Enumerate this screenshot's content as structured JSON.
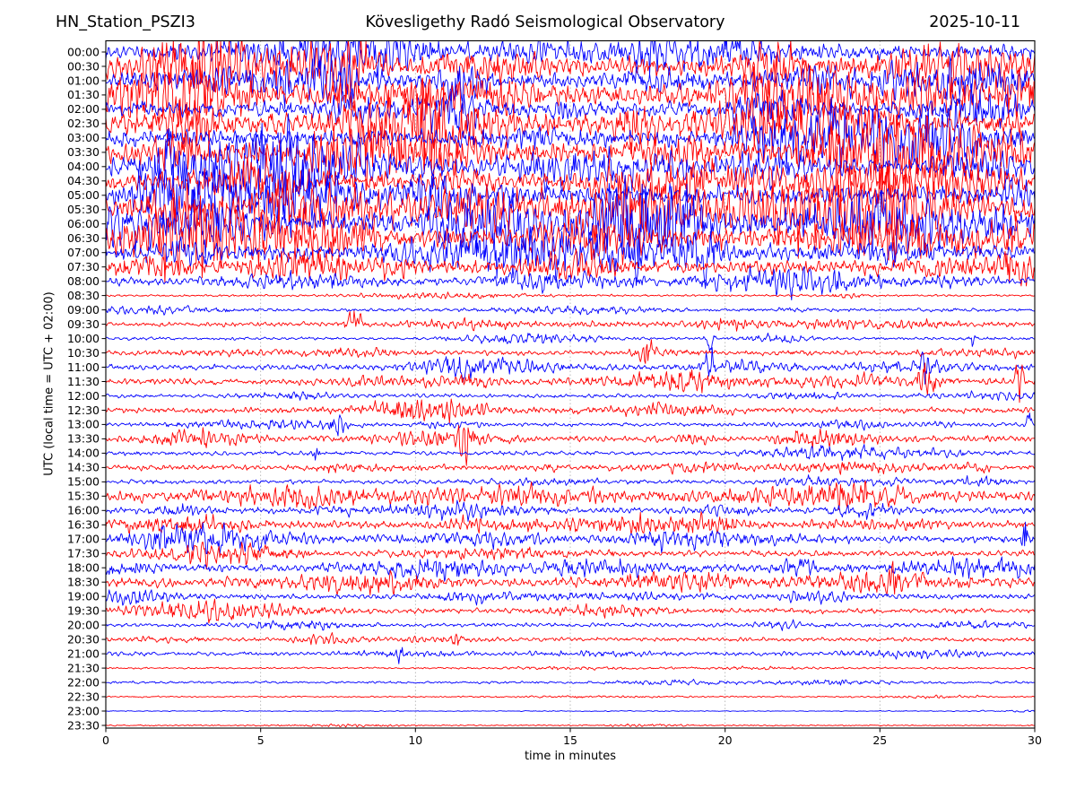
{
  "header": {
    "station": "HN_Station_PSZI3",
    "observatory": "Kövesligethy Radó Seismological Observatory",
    "date": "2025-10-11"
  },
  "chart_data": {
    "type": "line",
    "subtype": "helicorder-seismogram",
    "title": "HN_Station_PSZI3 — Kövesligethy Radó Seismological Observatory — 2025-10-11",
    "xlabel": "time in minutes",
    "ylabel": "UTC (local time = UTC + 02:00)",
    "xlim": [
      0,
      30
    ],
    "xticks": [
      0,
      5,
      10,
      15,
      20,
      25,
      30
    ],
    "grid": {
      "vertical_at": [
        5,
        10,
        15,
        20,
        25
      ],
      "style": "dotted",
      "color": "#aaaaaa"
    },
    "legend": "none",
    "colors": {
      "blue": "#0000ff",
      "red": "#ff0000",
      "axis": "#000000"
    },
    "trace_color_rule": "rows alternate blue (on the hour) and red (on the half hour)",
    "amplitude_note": "amp is typical half-amplitude as fraction of the 16px row spacing, estimated from pixels",
    "rows": [
      {
        "t": "00:00",
        "c": "blue",
        "a": 0.42,
        "nb": 7
      },
      {
        "t": "00:30",
        "c": "red",
        "a": 0.52,
        "nb": 8
      },
      {
        "t": "01:00",
        "c": "blue",
        "a": 0.42,
        "nb": 7
      },
      {
        "t": "01:30",
        "c": "red",
        "a": 0.58,
        "nb": 8
      },
      {
        "t": "02:00",
        "c": "blue",
        "a": 0.45,
        "nb": 7
      },
      {
        "t": "02:30",
        "c": "red",
        "a": 0.62,
        "nb": 8
      },
      {
        "t": "03:00",
        "c": "blue",
        "a": 0.48,
        "nb": 7
      },
      {
        "t": "03:30",
        "c": "red",
        "a": 0.62,
        "nb": 8
      },
      {
        "t": "04:00",
        "c": "blue",
        "a": 0.58,
        "nb": 8
      },
      {
        "t": "04:30",
        "c": "red",
        "a": 0.48,
        "nb": 7
      },
      {
        "t": "05:00",
        "c": "blue",
        "a": 0.52,
        "nb": 8
      },
      {
        "t": "05:30",
        "c": "red",
        "a": 0.68,
        "nb": 9
      },
      {
        "t": "06:00",
        "c": "blue",
        "a": 0.62,
        "nb": 9
      },
      {
        "t": "06:30",
        "c": "red",
        "a": 0.52,
        "nb": 8
      },
      {
        "t": "07:00",
        "c": "blue",
        "a": 0.42,
        "nb": 7
      },
      {
        "t": "07:30",
        "c": "red",
        "a": 0.38,
        "nb": 6
      },
      {
        "t": "08:00",
        "c": "blue",
        "a": 0.22,
        "nb": 5
      },
      {
        "t": "08:30",
        "c": "red",
        "a": 0.06,
        "nb": 3
      },
      {
        "t": "09:00",
        "c": "blue",
        "a": 0.09,
        "nb": 3
      },
      {
        "t": "09:30",
        "c": "red",
        "a": 0.12,
        "nb": 4,
        "ev": [
          8
        ]
      },
      {
        "t": "10:00",
        "c": "blue",
        "a": 0.08,
        "nb": 3,
        "ev": [
          19.5,
          28
        ]
      },
      {
        "t": "10:30",
        "c": "red",
        "a": 0.14,
        "nb": 4,
        "ev": [
          17.5
        ]
      },
      {
        "t": "11:00",
        "c": "blue",
        "a": 0.16,
        "nb": 4,
        "ev": [
          19.5,
          26.5
        ]
      },
      {
        "t": "11:30",
        "c": "red",
        "a": 0.18,
        "nb": 5,
        "ev": [
          26.5,
          29.5
        ]
      },
      {
        "t": "12:00",
        "c": "blue",
        "a": 0.11,
        "nb": 4
      },
      {
        "t": "12:30",
        "c": "red",
        "a": 0.15,
        "nb": 5
      },
      {
        "t": "13:00",
        "c": "blue",
        "a": 0.11,
        "nb": 4,
        "ev": [
          7.5,
          29.8
        ]
      },
      {
        "t": "13:30",
        "c": "red",
        "a": 0.18,
        "nb": 5,
        "ev": [
          11.7
        ]
      },
      {
        "t": "14:00",
        "c": "blue",
        "a": 0.12,
        "nb": 4,
        "ev": [
          6.8
        ]
      },
      {
        "t": "14:30",
        "c": "red",
        "a": 0.15,
        "nb": 5
      },
      {
        "t": "15:00",
        "c": "blue",
        "a": 0.12,
        "nb": 4
      },
      {
        "t": "15:30",
        "c": "red",
        "a": 0.28,
        "nb": 6
      },
      {
        "t": "16:00",
        "c": "blue",
        "a": 0.18,
        "nb": 5
      },
      {
        "t": "16:30",
        "c": "red",
        "a": 0.2,
        "nb": 6
      },
      {
        "t": "17:00",
        "c": "blue",
        "a": 0.2,
        "nb": 6,
        "ev": [
          29.7
        ]
      },
      {
        "t": "17:30",
        "c": "red",
        "a": 0.16,
        "nb": 5
      },
      {
        "t": "18:00",
        "c": "blue",
        "a": 0.22,
        "nb": 6
      },
      {
        "t": "18:30",
        "c": "red",
        "a": 0.26,
        "nb": 6,
        "ev": [
          25.5
        ]
      },
      {
        "t": "19:00",
        "c": "blue",
        "a": 0.16,
        "nb": 5
      },
      {
        "t": "19:30",
        "c": "red",
        "a": 0.14,
        "nb": 4
      },
      {
        "t": "20:00",
        "c": "blue",
        "a": 0.11,
        "nb": 4
      },
      {
        "t": "20:30",
        "c": "red",
        "a": 0.11,
        "nb": 3,
        "ev": [
          11.3
        ]
      },
      {
        "t": "21:00",
        "c": "blue",
        "a": 0.11,
        "nb": 3,
        "ev": [
          9.5
        ]
      },
      {
        "t": "21:30",
        "c": "red",
        "a": 0.05,
        "nb": 2
      },
      {
        "t": "22:00",
        "c": "blue",
        "a": 0.07,
        "nb": 2
      },
      {
        "t": "22:30",
        "c": "red",
        "a": 0.04,
        "nb": 2
      },
      {
        "t": "23:00",
        "c": "blue",
        "a": 0.025,
        "nb": 1
      },
      {
        "t": "23:30",
        "c": "red",
        "a": 0.035,
        "nb": 2
      }
    ]
  }
}
